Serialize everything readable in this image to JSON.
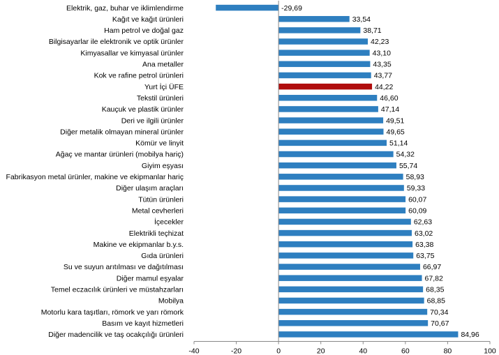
{
  "chart_data": {
    "type": "bar",
    "orientation": "horizontal",
    "title": "",
    "xlabel": "",
    "ylabel": "",
    "xlim": [
      -40,
      100
    ],
    "xticks": [
      -40,
      -20,
      0,
      20,
      40,
      60,
      80,
      100
    ],
    "grid": false,
    "legend": "none",
    "categories": [
      "Elektrik, gaz, buhar ve iklimlendirme",
      "Kağıt ve kağıt ürünleri",
      "Ham petrol ve doğal gaz",
      "Bilgisayarlar ile elektronik ve optik ürünler",
      "Kimyasallar ve kimyasal ürünler",
      "Ana metaller",
      "Kok ve rafine petrol ürünleri",
      "Yurt İçi ÜFE",
      "Tekstil ürünleri",
      "Kauçuk ve plastik ürünler",
      "Deri ve ilgili ürünler",
      "Diğer metalik olmayan mineral ürünler",
      "Kömür ve linyit",
      "Ağaç ve mantar ürünleri (mobilya hariç)",
      "Giyim eşyası",
      "Fabrikasyon metal ürünler, makine ve ekipmanlar hariç",
      "Diğer ulaşım araçları",
      "Tütün ürünleri",
      "Metal cevherleri",
      "İçecekler",
      "Elektrikli teçhizat",
      "Makine ve ekipmanlar b.y.s.",
      "Gıda ürünleri",
      "Su ve suyun arıtılması ve dağıtılması",
      "Diğer mamul eşyalar",
      "Temel eczacılık ürünleri ve müstahzarları",
      "Mobilya",
      "Motorlu kara taşıtları, römork ve yarı römork",
      "Basım ve kayıt hizmetleri",
      "Diğer madencilik ve taş ocakçılığı ürünleri"
    ],
    "values": [
      -29.69,
      33.54,
      38.71,
      42.23,
      43.1,
      43.35,
      43.77,
      44.22,
      46.6,
      47.14,
      49.51,
      49.65,
      51.14,
      54.32,
      55.74,
      58.93,
      59.33,
      60.07,
      60.09,
      62.63,
      63.02,
      63.38,
      63.75,
      66.97,
      67.82,
      68.35,
      68.85,
      70.34,
      70.67,
      84.96
    ],
    "value_labels": [
      "-29,69",
      "33,54",
      "38,71",
      "42,23",
      "43,10",
      "43,35",
      "43,77",
      "44,22",
      "46,60",
      "47,14",
      "49,51",
      "49,65",
      "51,14",
      "54,32",
      "55,74",
      "58,93",
      "59,33",
      "60,07",
      "60,09",
      "62,63",
      "63,02",
      "63,38",
      "63,75",
      "66,97",
      "67,82",
      "68,35",
      "68,85",
      "70,34",
      "70,67",
      "84,96"
    ],
    "highlight_index": 7,
    "colors": {
      "bar": "#2e7fc0",
      "highlight": "#b00d0d",
      "axis": "#888888"
    }
  }
}
